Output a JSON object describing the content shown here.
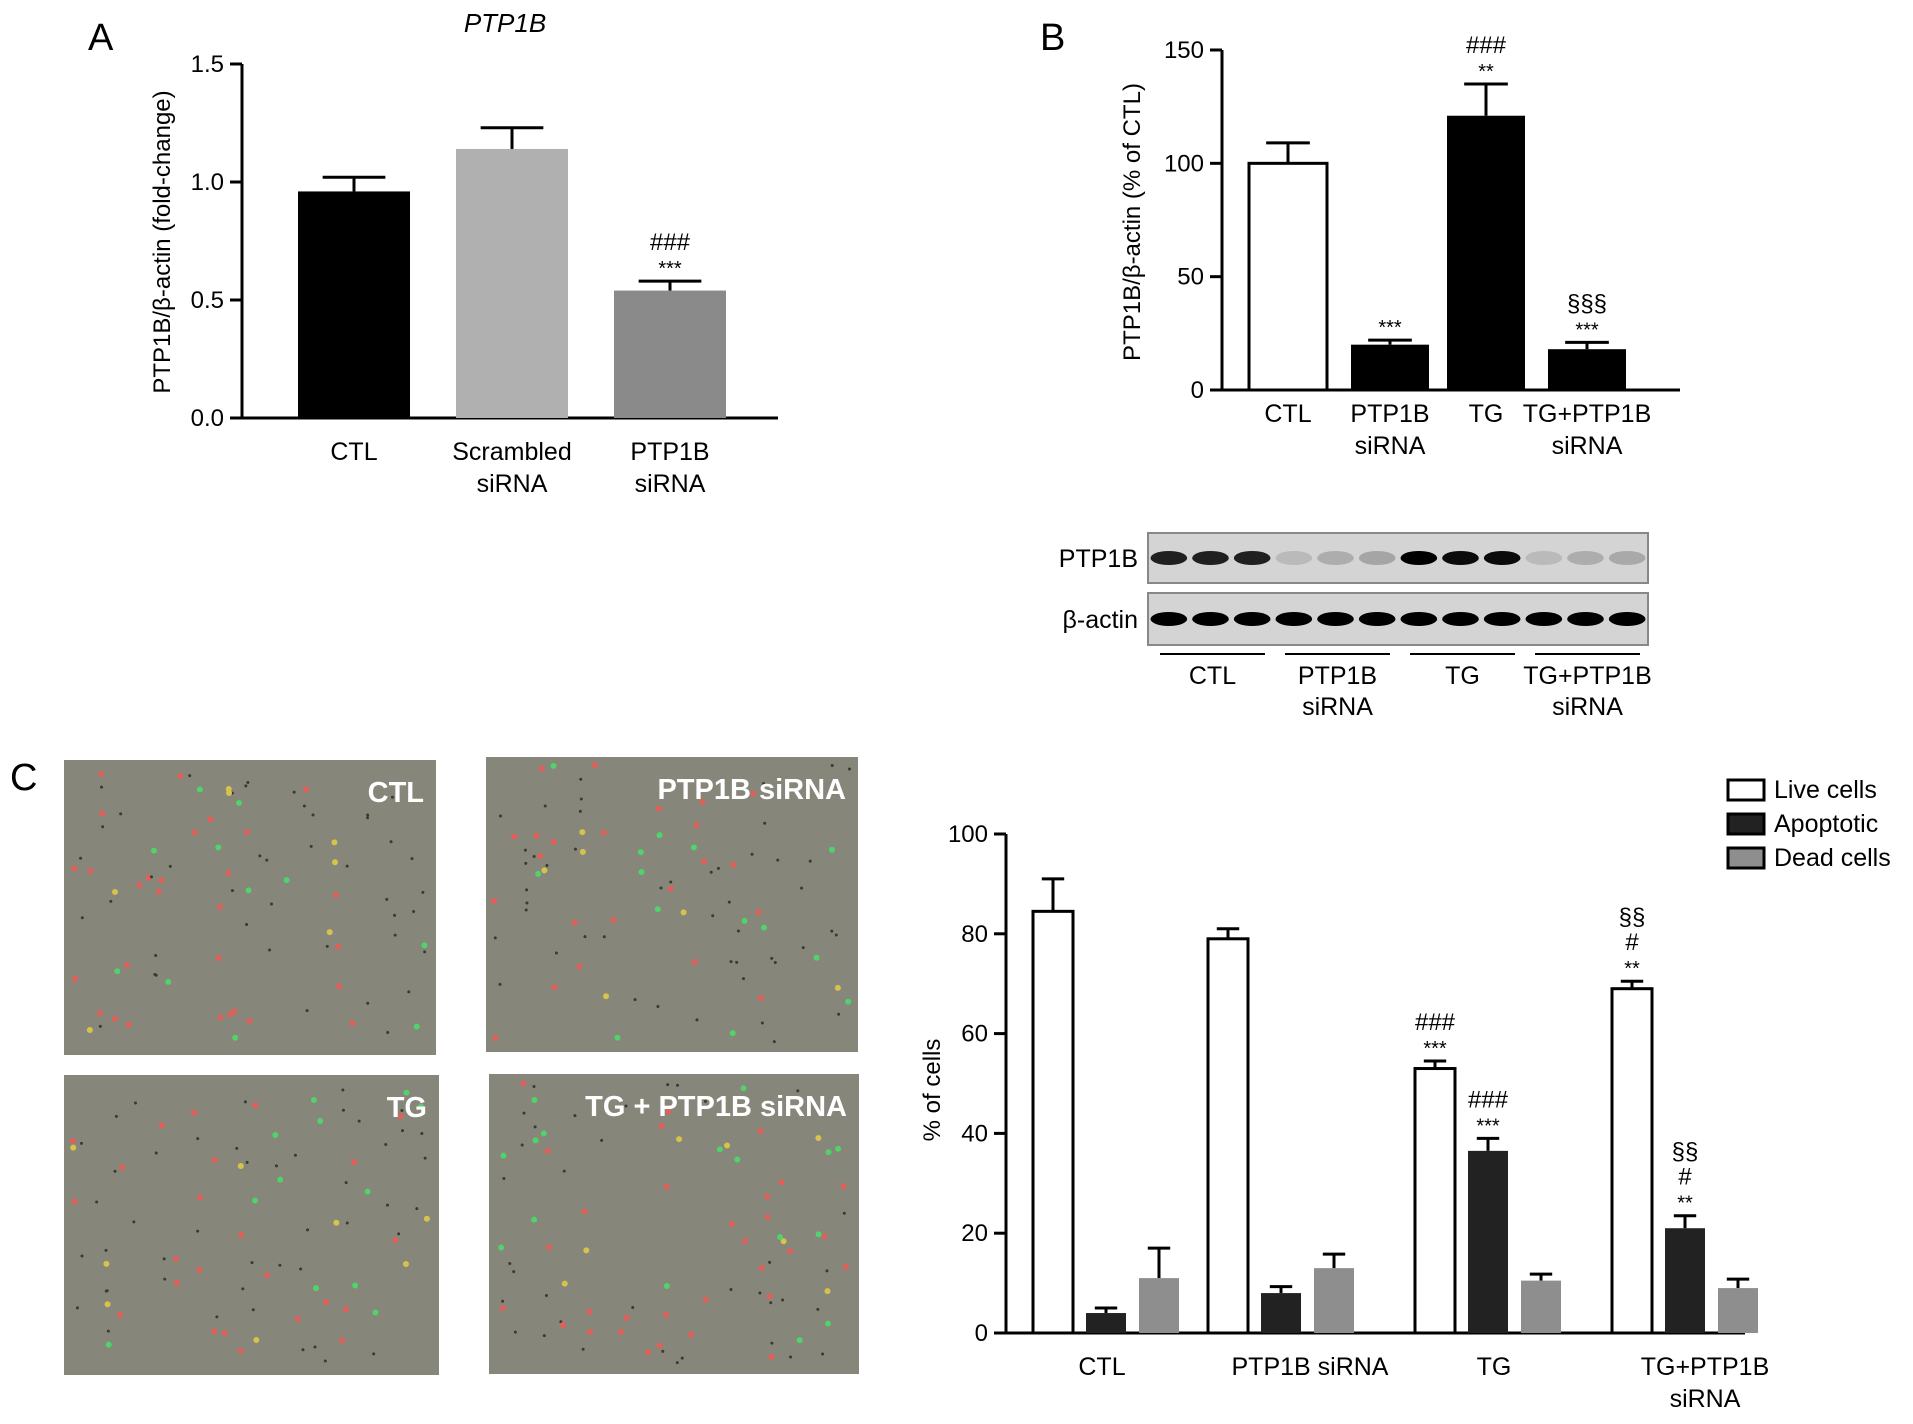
{
  "panel_letters": {
    "a": "A",
    "b": "B",
    "c": "C"
  },
  "chart_data": [
    {
      "id": "A",
      "type": "bar",
      "title": "PTP1B",
      "xlabel": "",
      "ylabel": "PTP1B/β-actin (fold-change)",
      "ylim": [
        0,
        1.5
      ],
      "yticks": [
        "0.0",
        "0.5",
        "1.0",
        "1.5"
      ],
      "categories": [
        [
          "CTL"
        ],
        [
          "Scrambled",
          "siRNA"
        ],
        [
          "PTP1B",
          "siRNA"
        ]
      ],
      "values": [
        0.96,
        1.14,
        0.54
      ],
      "errors": [
        0.06,
        0.09,
        0.04
      ],
      "colors": [
        "#000000",
        "#b0b0b0",
        "#8a8a8a"
      ],
      "annotations": [
        [],
        [],
        [
          "###",
          "***"
        ]
      ]
    },
    {
      "id": "B",
      "type": "bar",
      "xlabel": "",
      "ylabel": "PTP1B/β-actin (% of CTL)",
      "ylim": [
        0,
        150
      ],
      "yticks": [
        "0",
        "50",
        "100",
        "150"
      ],
      "categories": [
        [
          "CTL"
        ],
        [
          "PTP1B",
          "siRNA"
        ],
        [
          "TG"
        ],
        [
          "TG+PTP1B",
          "siRNA"
        ]
      ],
      "values": [
        100,
        20,
        121,
        18
      ],
      "errors": [
        9,
        2,
        14,
        3
      ],
      "colors": [
        "#ffffff",
        "#000000",
        "#000000",
        "#000000"
      ],
      "annotations": [
        [],
        [
          "***"
        ],
        [
          "###",
          "**"
        ],
        [
          "§§§",
          "***"
        ]
      ]
    },
    {
      "id": "C",
      "type": "bar",
      "xlabel": "",
      "ylabel": "% of cells",
      "ylim": [
        0,
        100
      ],
      "yticks": [
        "0",
        "20",
        "40",
        "60",
        "80",
        "100"
      ],
      "categories": [
        [
          "CTL"
        ],
        [
          "PTP1B siRNA"
        ],
        [
          "TG"
        ],
        [
          "TG+PTP1B",
          "siRNA"
        ]
      ],
      "series": [
        {
          "name": "Live cells",
          "color": "#ffffff",
          "values": [
            84.5,
            79,
            53,
            69
          ],
          "errors": [
            6.5,
            2,
            1.5,
            1.5
          ],
          "annotations": [
            [],
            [],
            [
              "###",
              "***"
            ],
            [
              "§§",
              "#",
              "**"
            ]
          ]
        },
        {
          "name": "Apoptotic",
          "color": "#222222",
          "values": [
            4,
            8,
            36.5,
            21
          ],
          "errors": [
            1,
            1.3,
            2.5,
            2.5
          ],
          "annotations": [
            [],
            [],
            [
              "###",
              "***"
            ],
            [
              "§§",
              "#",
              "**"
            ]
          ]
        },
        {
          "name": "Dead cells",
          "color": "#8e8e8e",
          "values": [
            11,
            13,
            10.5,
            9
          ],
          "errors": [
            6,
            2.8,
            1.3,
            1.8
          ],
          "annotations": [
            [],
            [],
            [],
            []
          ]
        }
      ],
      "legend": "top-right"
    }
  ],
  "western_blot": {
    "rows": [
      "PTP1B",
      "β-actin"
    ],
    "groups": [
      [
        "CTL"
      ],
      [
        "PTP1B",
        "siRNA"
      ],
      [
        "TG"
      ],
      [
        "TG+PTP1B",
        "siRNA"
      ]
    ],
    "band_intensity": {
      "PTP1B": [
        0.85,
        0.85,
        0.85,
        0.12,
        0.18,
        0.22,
        1.0,
        0.95,
        0.95,
        0.12,
        0.18,
        0.2
      ],
      "β-actin": [
        1,
        1,
        1,
        1,
        1,
        1,
        1,
        1,
        1,
        1,
        1,
        1
      ]
    }
  },
  "micrographs": [
    {
      "label": "CTL"
    },
    {
      "label": "PTP1B siRNA"
    },
    {
      "label": "TG"
    },
    {
      "label": "TG + PTP1B siRNA"
    }
  ]
}
